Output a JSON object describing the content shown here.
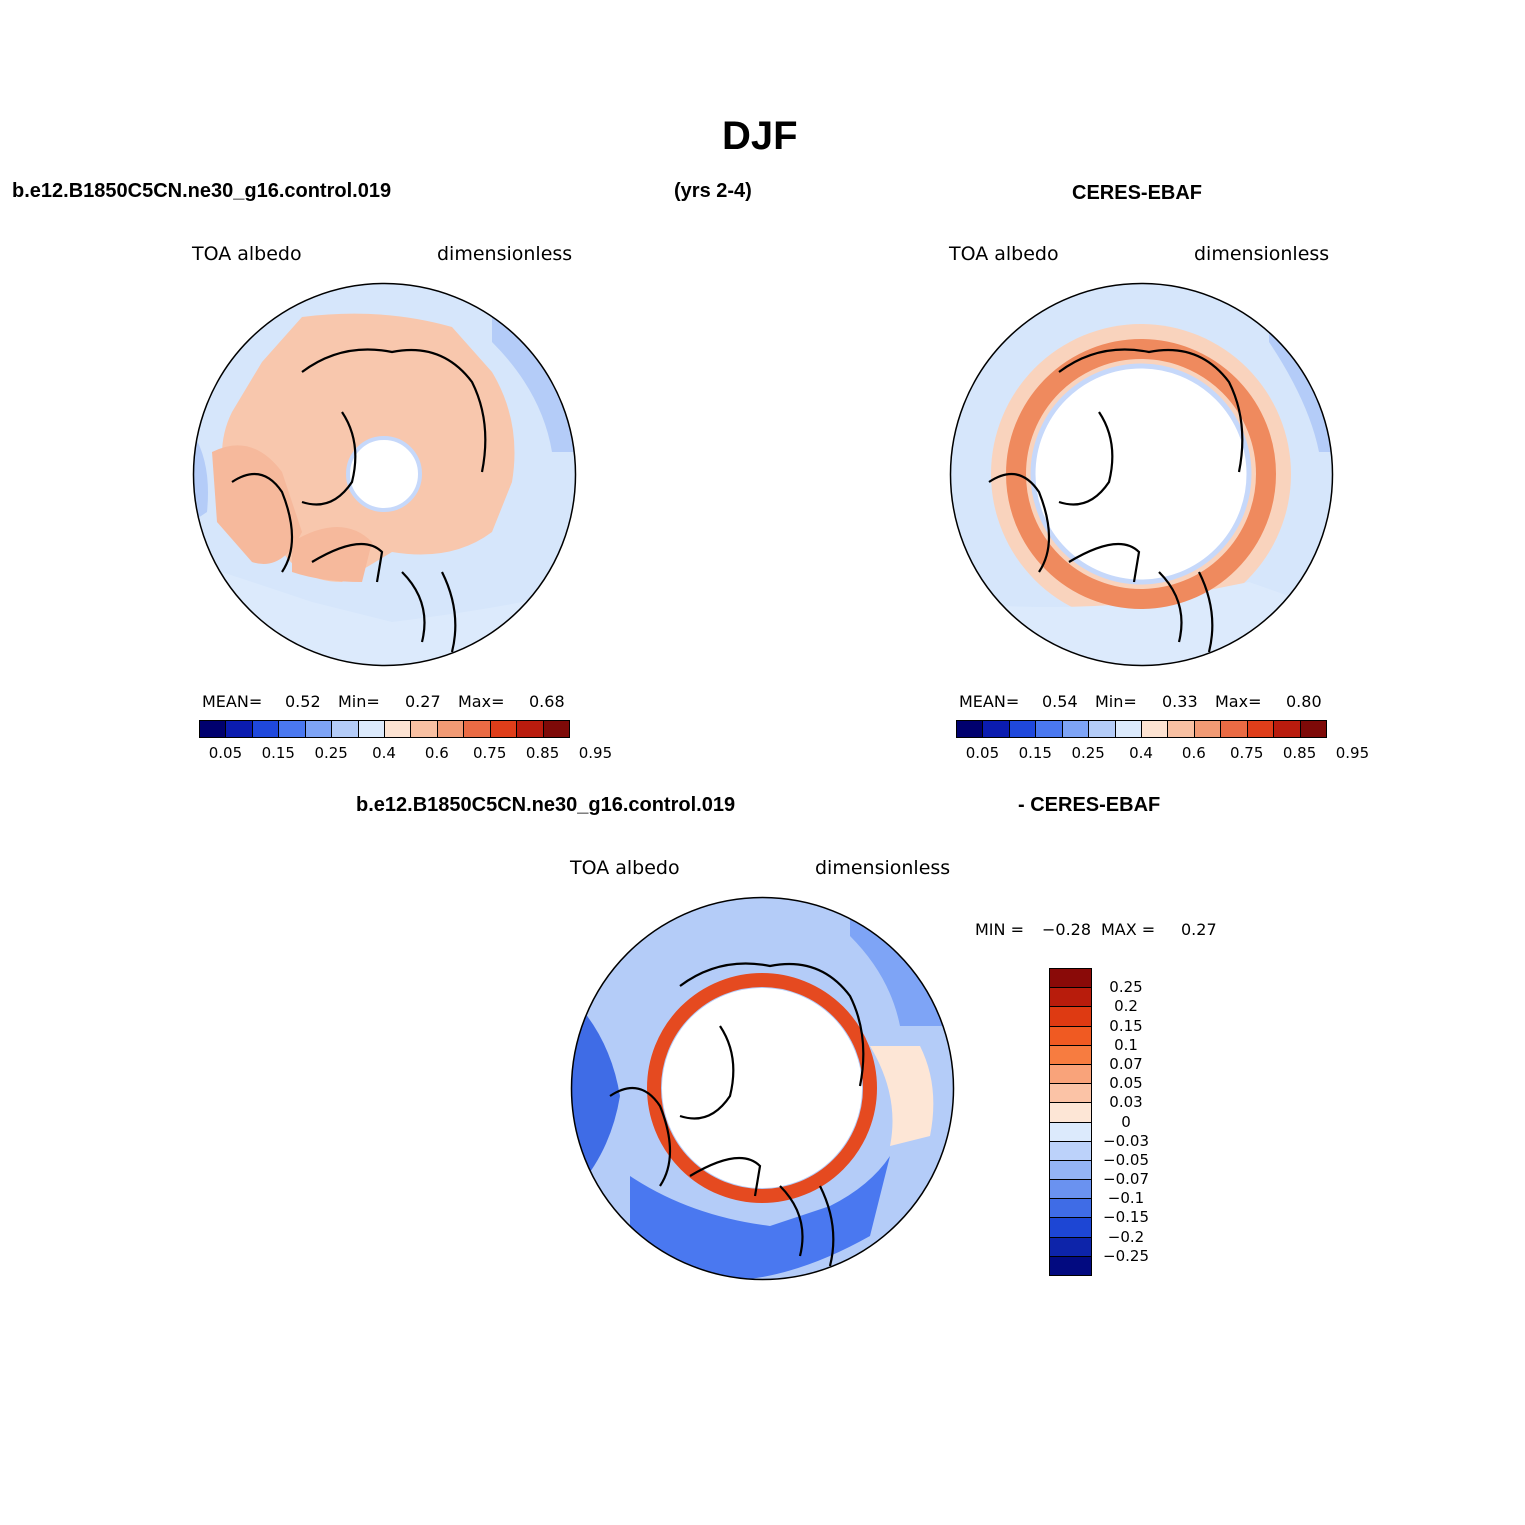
{
  "figure": {
    "title": "DJF",
    "case_name": "b.e12.B1850C5CN.ne30_g16.control.019",
    "years": "(yrs 2-4)",
    "obs_name": "CERES-EBAF",
    "diff_case_name": "b.e12.B1850C5CN.ne30_g16.control.019",
    "diff_obs_name": "- CERES-EBAF"
  },
  "panels": {
    "model": {
      "variable": "TOA  albedo",
      "units": "dimensionless",
      "mean_label": "MEAN=",
      "mean": "0.52",
      "min_label": "Min=",
      "min": "0.27",
      "max_label": "Max=",
      "max": "0.68"
    },
    "obs": {
      "variable": "TOA  albedo",
      "units": "dimensionless",
      "mean_label": "MEAN=",
      "mean": "0.54",
      "min_label": "Min=",
      "min": "0.33",
      "max_label": "Max=",
      "max": "0.80"
    },
    "diff": {
      "variable": "TOA  albedo",
      "units": "dimensionless",
      "min_label": "MIN =",
      "min": "−0.28",
      "max_label": "MAX =",
      "max": "0.27"
    }
  },
  "colorbars": {
    "absolute": {
      "tick_labels": [
        "0.05",
        "0.15",
        "0.25",
        "0.4",
        "0.6",
        "0.75",
        "0.85",
        "0.95"
      ],
      "colors": [
        "#00006e",
        "#0b1cb0",
        "#1f48dc",
        "#4a78f0",
        "#7ea4f6",
        "#b4ccf8",
        "#dceafc",
        "#fde3d2",
        "#f8c0a2",
        "#f19a74",
        "#ea6b44",
        "#df3e1a",
        "#b91c0e",
        "#7e0a08"
      ]
    },
    "difference": {
      "tick_labels": [
        "0.25",
        "0.2",
        "0.15",
        "0.1",
        "0.07",
        "0.05",
        "0.03",
        "0",
        "−0.03",
        "−0.05",
        "−0.07",
        "−0.1",
        "−0.15",
        "−0.2",
        "−0.25"
      ],
      "colors": [
        "#8a0a08",
        "#b81c0c",
        "#de3a12",
        "#f05a22",
        "#f77c40",
        "#f9a37a",
        "#fbc3a6",
        "#fde6d6",
        "#dceafc",
        "#bcd2fa",
        "#93b4f6",
        "#6a92f0",
        "#3f6ce6",
        "#1d46d4",
        "#0d24aa",
        "#020a80"
      ]
    }
  },
  "map_colors": {
    "land_outline": "#000000",
    "missing": "#ffffff",
    "ocean_light": "#d6e6fb",
    "land_peach": "#f8c7ad",
    "ring_red": "#e54a20"
  }
}
